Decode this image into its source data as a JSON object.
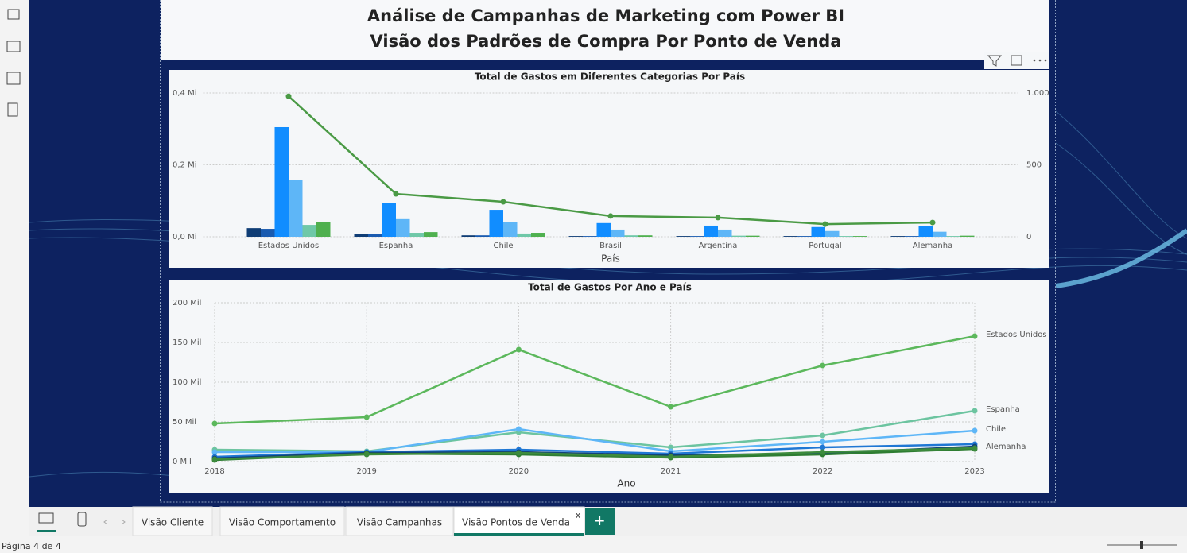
{
  "header": {
    "title_line1": "Análise de Campanhas de Marketing com Power BI",
    "title_line2": "Visão dos Padrões de Compra Por Ponto de Venda"
  },
  "chart_data": [
    {
      "type": "bar",
      "title": "Total de Gastos em Diferentes Categorias Por País",
      "xlabel": "País",
      "categories": [
        "Estados Unidos",
        "Espanha",
        "Chile",
        "Brasil",
        "Argentina",
        "Portugal",
        "Alemanha"
      ],
      "series": [
        {
          "color": "#0f3d75",
          "values": [
            0.024,
            0.007,
            0.004,
            0.002,
            0.002,
            0.002,
            0.002
          ]
        },
        {
          "color": "#1a5bb0",
          "values": [
            0.022,
            0.007,
            0.004,
            0.002,
            0.002,
            0.002,
            0.002
          ]
        },
        {
          "color": "#118dff",
          "values": [
            0.305,
            0.093,
            0.075,
            0.038,
            0.031,
            0.027,
            0.029
          ]
        },
        {
          "color": "#5eb6f7",
          "values": [
            0.159,
            0.049,
            0.04,
            0.02,
            0.02,
            0.016,
            0.014
          ]
        },
        {
          "color": "#6fc8a8",
          "values": [
            0.033,
            0.011,
            0.009,
            0.004,
            0.003,
            0.002,
            0.002
          ]
        },
        {
          "color": "#4fb04f",
          "values": [
            0.04,
            0.013,
            0.011,
            0.004,
            0.003,
            0.002,
            0.003
          ]
        },
        {
          "type": "line",
          "axis": "y2",
          "color": "#4a9a45",
          "values": [
            977,
            298,
            243,
            144,
            133,
            88,
            99
          ]
        }
      ],
      "ylim": [
        0,
        0.4
      ],
      "yticks": [
        {
          "value": 0,
          "label": "0,0 Mi"
        },
        {
          "value": 0.2,
          "label": "0,2 Mi"
        },
        {
          "value": 0.4,
          "label": "0,4 Mi"
        }
      ],
      "y2lim": [
        0,
        1000
      ],
      "y2ticks": [
        0,
        500,
        {
          "value": 1000,
          "label": "1.000"
        }
      ],
      "grid": true
    },
    {
      "type": "line",
      "title": "Total de Gastos Por Ano e País",
      "xlabel": "Ano",
      "x": [
        2018,
        2019,
        2020,
        2021,
        2022,
        2023
      ],
      "xlim": [
        2018,
        2023
      ],
      "xticks": [
        2018,
        2019,
        2020,
        2021,
        2022,
        2023
      ],
      "ylim": [
        0,
        200
      ],
      "yticks": [
        {
          "value": 0,
          "label": "0 Mil"
        },
        {
          "value": 50,
          "label": "50 Mil"
        },
        {
          "value": 100,
          "label": "100 Mil"
        },
        {
          "value": 150,
          "label": "150 Mil"
        },
        {
          "value": 200,
          "label": "200 Mil"
        }
      ],
      "grid": true,
      "series": [
        {
          "name": "Estados Unidos",
          "color": "#5cb85c",
          "values": [
            48,
            56,
            141,
            69,
            121,
            158
          ]
        },
        {
          "name": "Espanha",
          "color": "#6cc4a0",
          "values": [
            15,
            13,
            37,
            18,
            33,
            64
          ]
        },
        {
          "name": "Chile",
          "color": "#5eb6f7",
          "values": [
            12,
            12,
            41,
            13,
            25,
            39
          ]
        },
        {
          "color": "#1f77d4",
          "values": [
            6,
            12,
            15,
            10,
            18,
            22
          ]
        },
        {
          "color": "#12427a",
          "values": [
            4,
            11,
            12,
            8,
            10,
            19
          ]
        },
        {
          "color": "#2e7d32",
          "values": [
            2,
            10,
            9,
            5,
            9,
            16
          ]
        },
        {
          "name": "Alemanha",
          "color": "#3d8b3d",
          "values": [
            3,
            9,
            11,
            6,
            12,
            17
          ]
        }
      ]
    }
  ],
  "tabs": [
    "Visão Cliente",
    "Visão Comportamento",
    "Visão Campanhas",
    "Visão Pontos de Venda"
  ],
  "tab_close": "x",
  "tab_add": "+",
  "status": "Página 4 de 4"
}
